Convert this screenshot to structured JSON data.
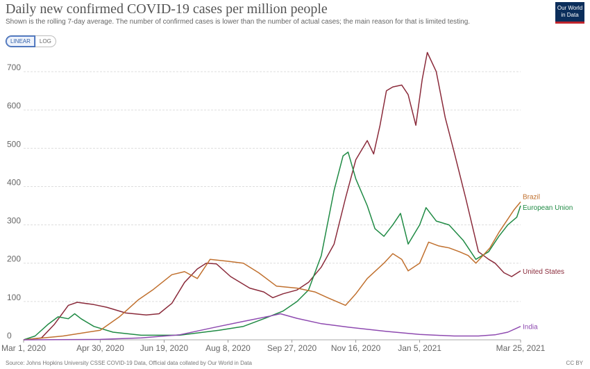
{
  "header": {
    "title": "Daily new confirmed COVID-19 cases per million people",
    "subtitle": "Shown is the rolling 7-day average. The number of confirmed cases is lower than the number of actual cases; the main reason for that is limited testing.",
    "logo_line1": "Our World",
    "logo_line2": "in Data"
  },
  "controls": {
    "linear_label": "LINEAR",
    "log_label": "LOG",
    "selected": "LINEAR"
  },
  "footer": {
    "source": "Source: Johns Hopkins University CSSE COVID-19 Data, Official data collated by Our World in Data",
    "license": "CC BY"
  },
  "colors": {
    "brazil": "#c0702e",
    "european_union": "#1f8a44",
    "united_states": "#8a2a3a",
    "india": "#8e4ab0",
    "grid": "#dddddd",
    "axis_text": "#666666"
  },
  "chart_data": {
    "type": "line",
    "title": "Daily new confirmed COVID-19 cases per million people",
    "xlabel": "",
    "ylabel": "",
    "ylim": [
      0,
      760
    ],
    "xlim": [
      "2020-03-01",
      "2021-03-25"
    ],
    "y_ticks": [
      0,
      100,
      200,
      300,
      400,
      500,
      600,
      700
    ],
    "x_ticks": [
      {
        "date": "2020-03-01",
        "label": "Mar 1, 2020"
      },
      {
        "date": "2020-04-30",
        "label": "Apr 30, 2020"
      },
      {
        "date": "2020-06-19",
        "label": "Jun 19, 2020"
      },
      {
        "date": "2020-08-08",
        "label": "Aug 8, 2020"
      },
      {
        "date": "2020-09-27",
        "label": "Sep 27, 2020"
      },
      {
        "date": "2020-11-16",
        "label": "Nov 16, 2020"
      },
      {
        "date": "2021-01-05",
        "label": "Jan 5, 2021"
      },
      {
        "date": "2021-03-25",
        "label": "Mar 25, 2021"
      }
    ],
    "grid": true,
    "legend": "line-end labels",
    "series": [
      {
        "name": "United States",
        "color": "#8a2a3a",
        "points": [
          [
            "2020-03-01",
            0
          ],
          [
            "2020-03-15",
            5
          ],
          [
            "2020-03-25",
            40
          ],
          [
            "2020-04-05",
            90
          ],
          [
            "2020-04-12",
            98
          ],
          [
            "2020-04-25",
            92
          ],
          [
            "2020-05-05",
            85
          ],
          [
            "2020-05-20",
            70
          ],
          [
            "2020-06-05",
            65
          ],
          [
            "2020-06-15",
            68
          ],
          [
            "2020-06-25",
            95
          ],
          [
            "2020-07-05",
            150
          ],
          [
            "2020-07-15",
            185
          ],
          [
            "2020-07-22",
            200
          ],
          [
            "2020-07-30",
            198
          ],
          [
            "2020-08-10",
            165
          ],
          [
            "2020-08-25",
            135
          ],
          [
            "2020-09-05",
            125
          ],
          [
            "2020-09-12",
            110
          ],
          [
            "2020-09-20",
            120
          ],
          [
            "2020-10-01",
            130
          ],
          [
            "2020-10-10",
            150
          ],
          [
            "2020-10-20",
            190
          ],
          [
            "2020-10-30",
            250
          ],
          [
            "2020-11-08",
            370
          ],
          [
            "2020-11-16",
            470
          ],
          [
            "2020-11-25",
            520
          ],
          [
            "2020-11-30",
            485
          ],
          [
            "2020-12-05",
            560
          ],
          [
            "2020-12-10",
            650
          ],
          [
            "2020-12-15",
            660
          ],
          [
            "2020-12-22",
            665
          ],
          [
            "2020-12-27",
            640
          ],
          [
            "2021-01-02",
            560
          ],
          [
            "2021-01-07",
            680
          ],
          [
            "2021-01-11",
            750
          ],
          [
            "2021-01-18",
            700
          ],
          [
            "2021-01-25",
            580
          ],
          [
            "2021-02-01",
            490
          ],
          [
            "2021-02-10",
            370
          ],
          [
            "2021-02-20",
            230
          ],
          [
            "2021-02-28",
            210
          ],
          [
            "2021-03-05",
            200
          ],
          [
            "2021-03-12",
            175
          ],
          [
            "2021-03-18",
            165
          ],
          [
            "2021-03-25",
            180
          ]
        ]
      },
      {
        "name": "European Union",
        "color": "#1f8a44",
        "points": [
          [
            "2020-03-01",
            0
          ],
          [
            "2020-03-10",
            10
          ],
          [
            "2020-03-20",
            40
          ],
          [
            "2020-03-28",
            60
          ],
          [
            "2020-04-05",
            55
          ],
          [
            "2020-04-10",
            68
          ],
          [
            "2020-04-15",
            55
          ],
          [
            "2020-04-25",
            35
          ],
          [
            "2020-05-10",
            20
          ],
          [
            "2020-06-01",
            12
          ],
          [
            "2020-07-01",
            12
          ],
          [
            "2020-08-01",
            25
          ],
          [
            "2020-08-20",
            35
          ],
          [
            "2020-09-05",
            55
          ],
          [
            "2020-09-20",
            75
          ],
          [
            "2020-10-01",
            100
          ],
          [
            "2020-10-10",
            130
          ],
          [
            "2020-10-20",
            220
          ],
          [
            "2020-10-30",
            390
          ],
          [
            "2020-11-06",
            480
          ],
          [
            "2020-11-10",
            490
          ],
          [
            "2020-11-16",
            420
          ],
          [
            "2020-11-25",
            350
          ],
          [
            "2020-12-01",
            290
          ],
          [
            "2020-12-08",
            270
          ],
          [
            "2020-12-15",
            300
          ],
          [
            "2020-12-21",
            330
          ],
          [
            "2020-12-27",
            250
          ],
          [
            "2021-01-05",
            300
          ],
          [
            "2021-01-10",
            345
          ],
          [
            "2021-01-18",
            310
          ],
          [
            "2021-01-28",
            300
          ],
          [
            "2021-02-08",
            260
          ],
          [
            "2021-02-18",
            210
          ],
          [
            "2021-02-28",
            230
          ],
          [
            "2021-03-08",
            270
          ],
          [
            "2021-03-15",
            300
          ],
          [
            "2021-03-22",
            320
          ],
          [
            "2021-03-25",
            350
          ]
        ]
      },
      {
        "name": "Brazil",
        "color": "#c0702e",
        "points": [
          [
            "2020-03-01",
            0
          ],
          [
            "2020-04-01",
            10
          ],
          [
            "2020-04-30",
            25
          ],
          [
            "2020-05-15",
            60
          ],
          [
            "2020-05-30",
            105
          ],
          [
            "2020-06-10",
            130
          ],
          [
            "2020-06-25",
            170
          ],
          [
            "2020-07-05",
            178
          ],
          [
            "2020-07-15",
            160
          ],
          [
            "2020-07-25",
            210
          ],
          [
            "2020-08-08",
            205
          ],
          [
            "2020-08-20",
            200
          ],
          [
            "2020-09-01",
            175
          ],
          [
            "2020-09-15",
            140
          ],
          [
            "2020-10-01",
            135
          ],
          [
            "2020-10-15",
            125
          ],
          [
            "2020-10-25",
            110
          ],
          [
            "2020-11-08",
            90
          ],
          [
            "2020-11-16",
            120
          ],
          [
            "2020-11-25",
            160
          ],
          [
            "2020-12-08",
            200
          ],
          [
            "2020-12-15",
            225
          ],
          [
            "2020-12-22",
            210
          ],
          [
            "2020-12-27",
            180
          ],
          [
            "2021-01-05",
            200
          ],
          [
            "2021-01-12",
            255
          ],
          [
            "2021-01-20",
            245
          ],
          [
            "2021-01-28",
            240
          ],
          [
            "2021-02-05",
            230
          ],
          [
            "2021-02-12",
            220
          ],
          [
            "2021-02-18",
            200
          ],
          [
            "2021-03-01",
            240
          ],
          [
            "2021-03-08",
            280
          ],
          [
            "2021-03-15",
            315
          ],
          [
            "2021-03-20",
            340
          ],
          [
            "2021-03-25",
            360
          ]
        ]
      },
      {
        "name": "India",
        "color": "#8e4ab0",
        "points": [
          [
            "2020-03-01",
            0
          ],
          [
            "2020-04-30",
            1
          ],
          [
            "2020-06-01",
            5
          ],
          [
            "2020-07-01",
            13
          ],
          [
            "2020-08-01",
            35
          ],
          [
            "2020-08-20",
            48
          ],
          [
            "2020-09-10",
            62
          ],
          [
            "2020-09-18",
            68
          ],
          [
            "2020-10-01",
            56
          ],
          [
            "2020-10-20",
            42
          ],
          [
            "2020-11-10",
            33
          ],
          [
            "2020-12-10",
            22
          ],
          [
            "2021-01-05",
            14
          ],
          [
            "2021-02-01",
            10
          ],
          [
            "2021-02-20",
            10
          ],
          [
            "2021-03-05",
            13
          ],
          [
            "2021-03-15",
            20
          ],
          [
            "2021-03-25",
            35
          ]
        ]
      }
    ]
  }
}
